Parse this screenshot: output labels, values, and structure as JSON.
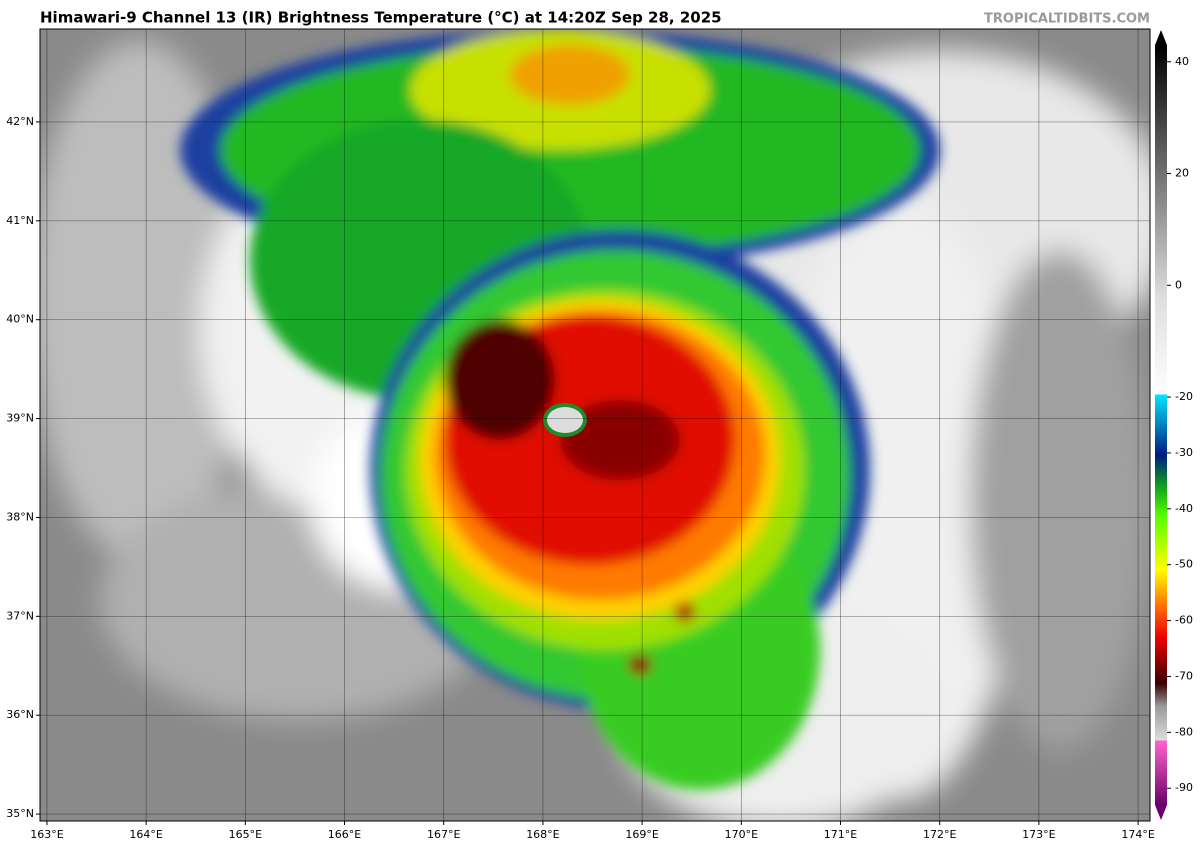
{
  "chart_data": {
    "type": "map",
    "title": "Himawari-9 Channel 13 (IR) Brightness Temperature (°C) at 14:20Z Sep 28, 2025",
    "credit": "TROPICALTIDBITS.COM",
    "xlim": [
      162.93,
      174.12
    ],
    "ylim": [
      34.93,
      42.94
    ],
    "xticks": [
      {
        "value": 163,
        "label": "163°E"
      },
      {
        "value": 164,
        "label": "164°E"
      },
      {
        "value": 165,
        "label": "165°E"
      },
      {
        "value": 166,
        "label": "166°E"
      },
      {
        "value": 167,
        "label": "167°E"
      },
      {
        "value": 168,
        "label": "168°E"
      },
      {
        "value": 169,
        "label": "169°E"
      },
      {
        "value": 170,
        "label": "170°E"
      },
      {
        "value": 171,
        "label": "171°E"
      },
      {
        "value": 172,
        "label": "172°E"
      },
      {
        "value": 173,
        "label": "173°E"
      },
      {
        "value": 174,
        "label": "174°E"
      }
    ],
    "yticks": [
      {
        "value": 35,
        "label": "35°N"
      },
      {
        "value": 36,
        "label": "36°N"
      },
      {
        "value": 37,
        "label": "37°N"
      },
      {
        "value": 38,
        "label": "38°N"
      },
      {
        "value": 39,
        "label": "39°N"
      },
      {
        "value": 40,
        "label": "40°N"
      },
      {
        "value": 41,
        "label": "41°N"
      },
      {
        "value": 42,
        "label": "42°N"
      }
    ],
    "grid": true,
    "colorbar": {
      "lim": [
        -93,
        43
      ],
      "ticks": [
        40,
        20,
        0,
        -20,
        -30,
        -40,
        -50,
        -60,
        -70,
        -80,
        -90
      ]
    }
  }
}
